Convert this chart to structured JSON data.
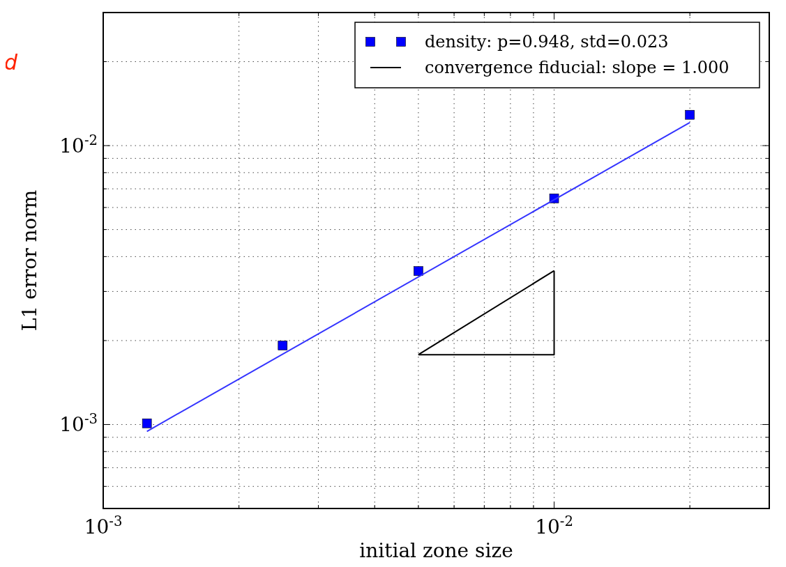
{
  "chart_data": {
    "type": "scatter",
    "xlabel": "initial zone size",
    "ylabel": "L1 error norm",
    "log": "xy",
    "grid": true,
    "legend": "top right",
    "marker": "square",
    "line_style": "solid",
    "annotations": [
      "d"
    ],
    "xlim": [
      0.001,
      0.03
    ],
    "ylim": [
      0.0005,
      0.03
    ],
    "xticks": [
      {
        "value": 0.001,
        "label": "10$^{-3}$"
      },
      {
        "value": 0.002,
        "label": null
      },
      {
        "value": 0.003,
        "label": null
      },
      {
        "value": 0.004,
        "label": null
      },
      {
        "value": 0.005,
        "label": null
      },
      {
        "value": 0.006,
        "label": null
      },
      {
        "value": 0.007,
        "label": null
      },
      {
        "value": 0.008,
        "label": null
      },
      {
        "value": 0.009,
        "label": null
      },
      {
        "value": 0.01,
        "label": "10$^{-2}$"
      },
      {
        "value": 0.02,
        "label": null
      },
      {
        "value": 0.03,
        "label": null
      }
    ],
    "yticks": [
      {
        "value": 0.0006,
        "label": null
      },
      {
        "value": 0.0007,
        "label": null
      },
      {
        "value": 0.0008,
        "label": null
      },
      {
        "value": 0.0009,
        "label": null
      },
      {
        "value": 0.001,
        "label": "10$^{-3}$"
      },
      {
        "value": 0.002,
        "label": null
      },
      {
        "value": 0.003,
        "label": null
      },
      {
        "value": 0.004,
        "label": null
      },
      {
        "value": 0.005,
        "label": null
      },
      {
        "value": 0.006,
        "label": null
      },
      {
        "value": 0.007,
        "label": null
      },
      {
        "value": 0.008,
        "label": null
      },
      {
        "value": 0.009,
        "label": null
      },
      {
        "value": 0.01,
        "label": "10$^{-2}$"
      },
      {
        "value": 0.02,
        "label": null
      },
      {
        "value": 0.03,
        "label": null
      }
    ],
    "series": [
      {
        "name": "density: p=0.948, std=0.023",
        "color": "#0000ff",
        "x": [
          0.00125,
          0.0025,
          0.005,
          0.01,
          0.02
        ],
        "values": [
          0.00101,
          0.00192,
          0.00355,
          0.00647,
          0.0129
        ]
      },
      {
        "type": "line",
        "marker": "none",
        "color": "#3333ff",
        "x": [
          0.00125,
          0.02
        ],
        "values": [
          0.000945,
          0.0121
        ]
      },
      {
        "type": "line",
        "marker": "none",
        "name": "convergence fiducial: slope = 1.000",
        "color": "#000000",
        "x": [
          0.005,
          0.01
        ],
        "values": [
          0.00178,
          0.00356
        ]
      }
    ]
  }
}
